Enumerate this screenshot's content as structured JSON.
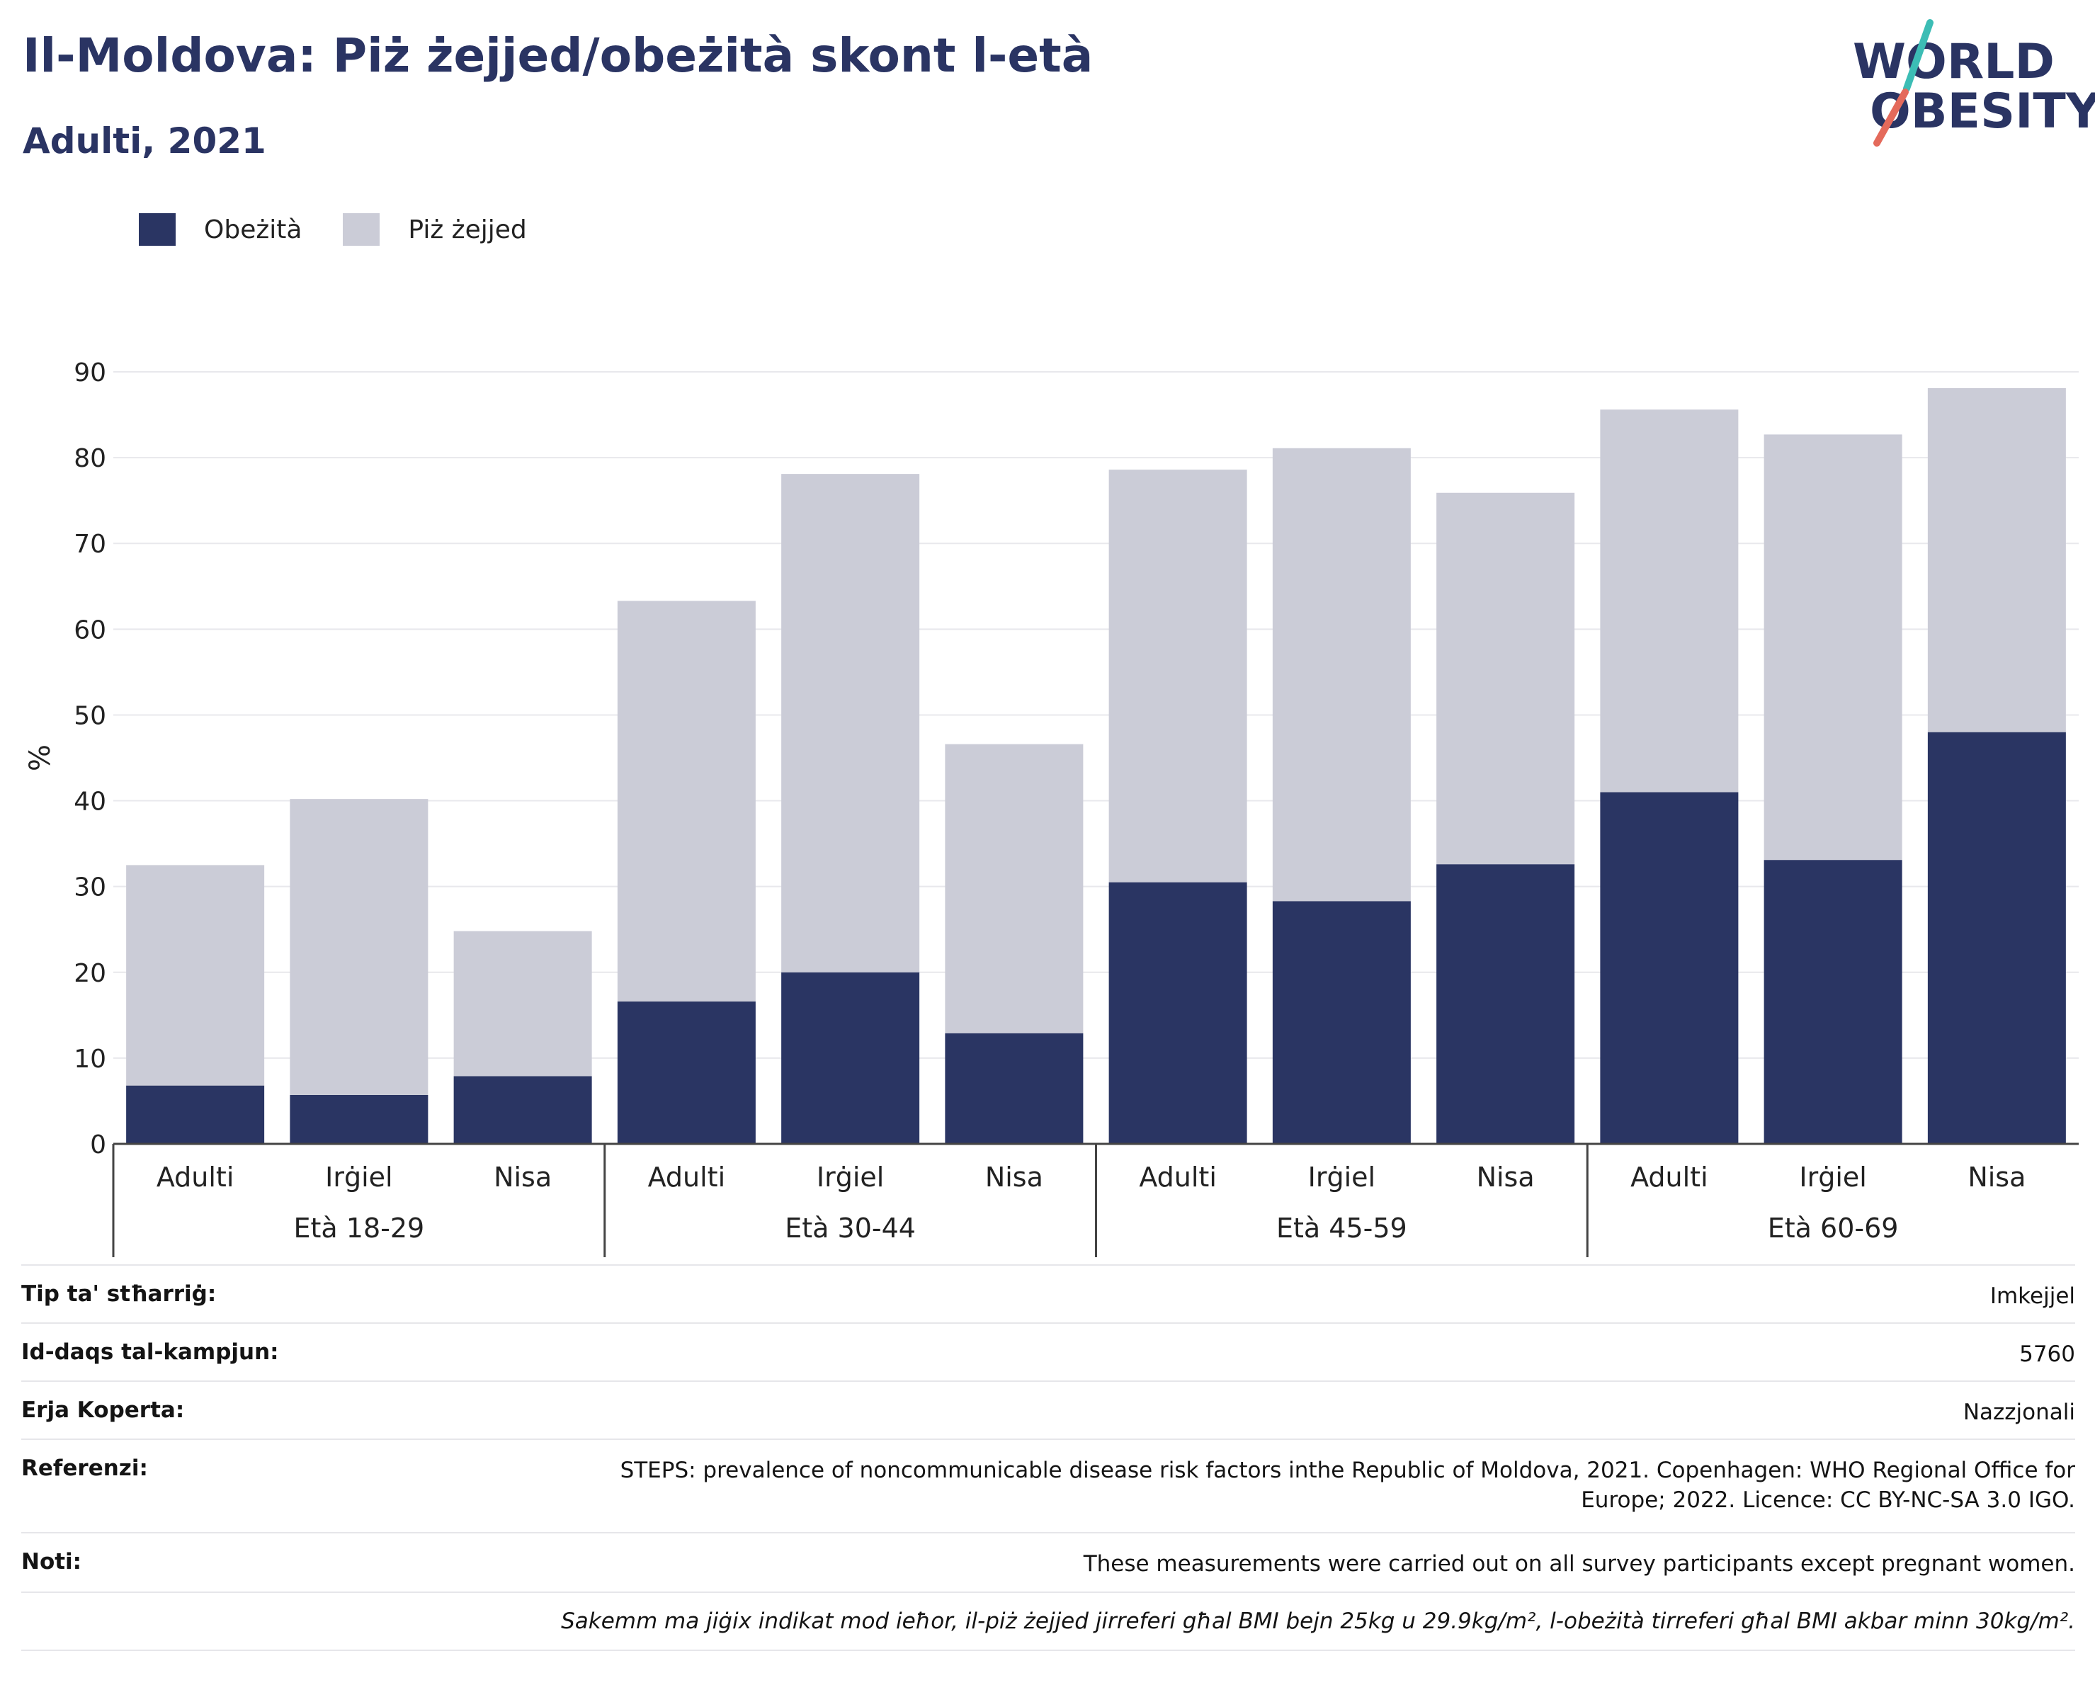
{
  "header": {
    "title": "Il-Moldova: Piż żejjed/obeżità skont l-età",
    "subtitle": "Adulti, 2021"
  },
  "logo": {
    "line1": "WORLD",
    "line2": "OBESITY",
    "accent_teal": "#3cbdb5",
    "accent_red": "#e46a5b",
    "text_color": "#2a3463"
  },
  "legend": [
    {
      "label": "Obeżità",
      "color": "#2a3563"
    },
    {
      "label": "Piż żejjed",
      "color": "#cbccd7"
    }
  ],
  "chart_data": {
    "type": "bar",
    "stacked": true,
    "ylabel": "%",
    "ylim": [
      0,
      90
    ],
    "yticks": [
      0,
      10,
      20,
      30,
      40,
      50,
      60,
      70,
      80,
      90
    ],
    "grid": true,
    "legend_position": "top-left",
    "groups": [
      {
        "label": "Età 18-29",
        "categories": [
          "Adulti",
          "Irġiel",
          "Nisa"
        ]
      },
      {
        "label": "Età 30-44",
        "categories": [
          "Adulti",
          "Irġiel",
          "Nisa"
        ]
      },
      {
        "label": "Età 45-59",
        "categories": [
          "Adulti",
          "Irġiel",
          "Nisa"
        ]
      },
      {
        "label": "Età 60-69",
        "categories": [
          "Adulti",
          "Irġiel",
          "Nisa"
        ]
      }
    ],
    "series": [
      {
        "name": "Obeżità",
        "color": "#2a3563",
        "values": [
          6.8,
          5.7,
          7.9,
          16.6,
          20.0,
          12.9,
          30.5,
          28.3,
          32.6,
          41.0,
          33.1,
          48.0
        ]
      },
      {
        "name": "Piż żejjed",
        "color": "#cbccd7",
        "values": [
          25.7,
          34.5,
          16.9,
          46.7,
          58.1,
          33.7,
          48.1,
          52.8,
          43.3,
          44.6,
          49.6,
          40.1
        ]
      }
    ]
  },
  "info": {
    "rows": [
      {
        "label": "Tip ta' stħarriġ:",
        "value": "Imkejjel"
      },
      {
        "label": "Id-daqs tal-kampjun:",
        "value": "5760"
      },
      {
        "label": "Erja Koperta:",
        "value": "Nazzjonali"
      },
      {
        "label": "Referenzi:",
        "value": "STEPS: prevalence of noncommunicable disease risk factors inthe Republic of Moldova, 2021. Copenhagen: WHO Regional Office for Europe; 2022. Licence: CC BY-NC-SA 3.0 IGO."
      },
      {
        "label": "Noti:",
        "value": "These measurements were carried out on all survey participants except pregnant women."
      }
    ],
    "footnote": "Sakemm ma jiġix indikat mod ieħor, il-piż żejjed jirreferi għal BMI bejn 25kg u 29.9kg/m², l-obeżità tirreferi għal BMI akbar minn 30kg/m²."
  }
}
